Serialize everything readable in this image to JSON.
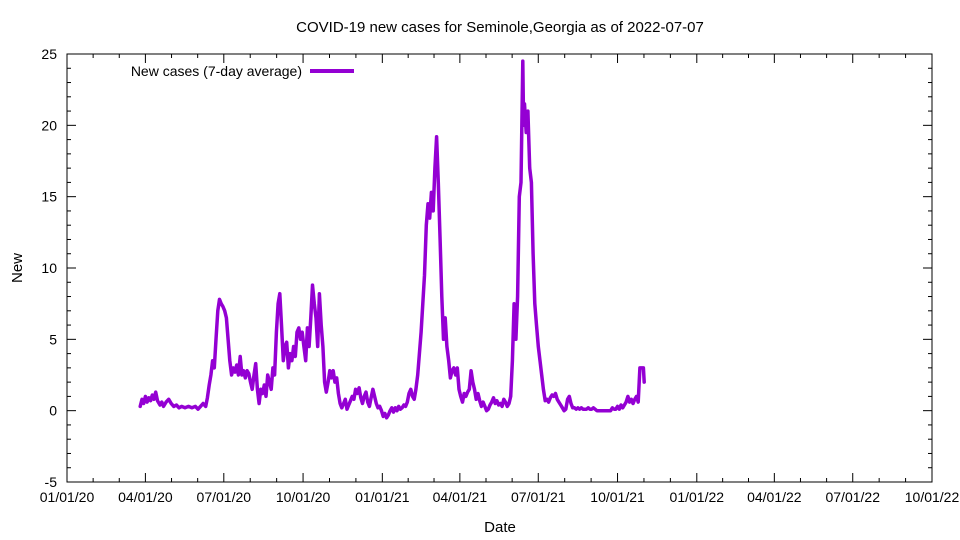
{
  "chart_data": {
    "type": "line",
    "title": "COVID-19 new cases for Seminole,Georgia as of 2022-07-07",
    "xlabel": "Date",
    "ylabel": "New",
    "ylim": [
      -5,
      25
    ],
    "yticks": [
      -5,
      0,
      5,
      10,
      15,
      20,
      25
    ],
    "xlim_days": [
      0,
      1004
    ],
    "xticks": [
      {
        "day": 0,
        "label": "01/01/20"
      },
      {
        "day": 91,
        "label": "04/01/20"
      },
      {
        "day": 182,
        "label": "07/01/20"
      },
      {
        "day": 274,
        "label": "10/01/20"
      },
      {
        "day": 366,
        "label": "01/01/21"
      },
      {
        "day": 456,
        "label": "04/01/21"
      },
      {
        "day": 547,
        "label": "07/01/21"
      },
      {
        "day": 639,
        "label": "10/01/21"
      },
      {
        "day": 731,
        "label": "01/01/22"
      },
      {
        "day": 821,
        "label": "04/01/22"
      },
      {
        "day": 912,
        "label": "07/01/22"
      },
      {
        "day": 1004,
        "label": "10/01/22"
      }
    ],
    "legend_position": "top-left",
    "series": [
      {
        "name": "New cases (7-day average)",
        "color": "#9400d3",
        "points": [
          [
            85,
            0.3
          ],
          [
            87,
            0.8
          ],
          [
            89,
            0.5
          ],
          [
            91,
            1.0
          ],
          [
            93,
            0.6
          ],
          [
            95,
            0.9
          ],
          [
            97,
            0.7
          ],
          [
            99,
            1.1
          ],
          [
            101,
            0.8
          ],
          [
            103,
            1.3
          ],
          [
            105,
            0.7
          ],
          [
            108,
            0.4
          ],
          [
            110,
            0.6
          ],
          [
            112,
            0.3
          ],
          [
            115,
            0.6
          ],
          [
            118,
            0.8
          ],
          [
            121,
            0.5
          ],
          [
            124,
            0.3
          ],
          [
            127,
            0.4
          ],
          [
            130,
            0.2
          ],
          [
            133,
            0.3
          ],
          [
            137,
            0.2
          ],
          [
            141,
            0.3
          ],
          [
            145,
            0.2
          ],
          [
            149,
            0.3
          ],
          [
            152,
            0.1
          ],
          [
            155,
            0.3
          ],
          [
            158,
            0.5
          ],
          [
            161,
            0.3
          ],
          [
            163,
            0.9
          ],
          [
            165,
            1.8
          ],
          [
            167,
            2.5
          ],
          [
            169,
            3.5
          ],
          [
            171,
            3.0
          ],
          [
            173,
            5.0
          ],
          [
            175,
            7.0
          ],
          [
            177,
            7.8
          ],
          [
            179,
            7.5
          ],
          [
            181,
            7.3
          ],
          [
            183,
            7.0
          ],
          [
            185,
            6.5
          ],
          [
            187,
            5.0
          ],
          [
            189,
            3.5
          ],
          [
            191,
            2.5
          ],
          [
            193,
            3.0
          ],
          [
            195,
            2.7
          ],
          [
            197,
            3.2
          ],
          [
            199,
            2.5
          ],
          [
            201,
            3.8
          ],
          [
            203,
            2.5
          ],
          [
            205,
            2.8
          ],
          [
            207,
            2.3
          ],
          [
            209,
            2.8
          ],
          [
            211,
            2.6
          ],
          [
            213,
            2.0
          ],
          [
            215,
            1.5
          ],
          [
            217,
            2.5
          ],
          [
            219,
            3.3
          ],
          [
            221,
            1.5
          ],
          [
            223,
            0.5
          ],
          [
            225,
            1.5
          ],
          [
            227,
            1.2
          ],
          [
            229,
            1.8
          ],
          [
            231,
            1.0
          ],
          [
            233,
            2.5
          ],
          [
            235,
            2.0
          ],
          [
            237,
            1.5
          ],
          [
            239,
            3.0
          ],
          [
            241,
            2.5
          ],
          [
            243,
            5.5
          ],
          [
            245,
            7.5
          ],
          [
            247,
            8.2
          ],
          [
            249,
            6.0
          ],
          [
            251,
            3.5
          ],
          [
            253,
            4.5
          ],
          [
            255,
            4.8
          ],
          [
            257,
            3.0
          ],
          [
            259,
            4.0
          ],
          [
            261,
            3.5
          ],
          [
            263,
            4.5
          ],
          [
            265,
            3.8
          ],
          [
            267,
            5.5
          ],
          [
            269,
            5.8
          ],
          [
            271,
            5.0
          ],
          [
            273,
            5.5
          ],
          [
            275,
            4.5
          ],
          [
            277,
            3.5
          ],
          [
            279,
            5.8
          ],
          [
            281,
            4.5
          ],
          [
            283,
            6.5
          ],
          [
            285,
            8.8
          ],
          [
            287,
            7.5
          ],
          [
            289,
            6.5
          ],
          [
            291,
            4.5
          ],
          [
            293,
            8.2
          ],
          [
            295,
            6.0
          ],
          [
            297,
            4.5
          ],
          [
            299,
            2.0
          ],
          [
            301,
            1.3
          ],
          [
            303,
            2.0
          ],
          [
            305,
            2.8
          ],
          [
            307,
            2.3
          ],
          [
            309,
            2.8
          ],
          [
            311,
            2.0
          ],
          [
            313,
            2.3
          ],
          [
            315,
            1.2
          ],
          [
            317,
            0.5
          ],
          [
            319,
            0.2
          ],
          [
            321,
            0.5
          ],
          [
            323,
            0.8
          ],
          [
            325,
            0.1
          ],
          [
            327,
            0.4
          ],
          [
            329,
            0.7
          ],
          [
            331,
            1.0
          ],
          [
            333,
            0.8
          ],
          [
            335,
            1.5
          ],
          [
            337,
            1.2
          ],
          [
            339,
            1.6
          ],
          [
            341,
            0.9
          ],
          [
            343,
            0.5
          ],
          [
            345,
            1.0
          ],
          [
            347,
            1.3
          ],
          [
            349,
            0.6
          ],
          [
            351,
            0.3
          ],
          [
            353,
            0.9
          ],
          [
            355,
            1.5
          ],
          [
            357,
            1.0
          ],
          [
            359,
            0.5
          ],
          [
            361,
            0.2
          ],
          [
            363,
            0.3
          ],
          [
            365,
            0.0
          ],
          [
            367,
            -0.4
          ],
          [
            369,
            -0.2
          ],
          [
            371,
            -0.5
          ],
          [
            373,
            -0.3
          ],
          [
            375,
            0.0
          ],
          [
            377,
            0.2
          ],
          [
            379,
            -0.1
          ],
          [
            381,
            0.2
          ],
          [
            383,
            0.0
          ],
          [
            385,
            0.3
          ],
          [
            387,
            0.1
          ],
          [
            389,
            0.2
          ],
          [
            391,
            0.4
          ],
          [
            393,
            0.3
          ],
          [
            395,
            0.6
          ],
          [
            397,
            1.2
          ],
          [
            399,
            1.5
          ],
          [
            401,
            1.0
          ],
          [
            403,
            0.8
          ],
          [
            405,
            1.5
          ],
          [
            407,
            2.5
          ],
          [
            409,
            4.0
          ],
          [
            411,
            5.5
          ],
          [
            413,
            7.5
          ],
          [
            415,
            9.5
          ],
          [
            417,
            13.0
          ],
          [
            419,
            14.5
          ],
          [
            421,
            13.5
          ],
          [
            423,
            15.3
          ],
          [
            425,
            14.0
          ],
          [
            427,
            17.0
          ],
          [
            429,
            19.2
          ],
          [
            431,
            16.0
          ],
          [
            433,
            12.0
          ],
          [
            435,
            8.0
          ],
          [
            437,
            5.0
          ],
          [
            439,
            6.5
          ],
          [
            441,
            4.5
          ],
          [
            443,
            3.5
          ],
          [
            445,
            2.3
          ],
          [
            447,
            2.8
          ],
          [
            449,
            3.0
          ],
          [
            451,
            2.5
          ],
          [
            453,
            3.0
          ],
          [
            455,
            1.5
          ],
          [
            457,
            1.0
          ],
          [
            459,
            0.6
          ],
          [
            461,
            1.2
          ],
          [
            463,
            1.0
          ],
          [
            465,
            1.3
          ],
          [
            467,
            1.5
          ],
          [
            469,
            2.8
          ],
          [
            471,
            2.0
          ],
          [
            473,
            1.5
          ],
          [
            475,
            0.8
          ],
          [
            477,
            1.2
          ],
          [
            479,
            0.7
          ],
          [
            481,
            0.3
          ],
          [
            483,
            0.6
          ],
          [
            485,
            0.3
          ],
          [
            487,
            0.0
          ],
          [
            489,
            0.1
          ],
          [
            491,
            0.4
          ],
          [
            493,
            0.6
          ],
          [
            495,
            0.9
          ],
          [
            497,
            0.5
          ],
          [
            499,
            0.7
          ],
          [
            501,
            0.4
          ],
          [
            503,
            0.5
          ],
          [
            505,
            0.3
          ],
          [
            507,
            0.8
          ],
          [
            509,
            0.6
          ],
          [
            511,
            0.3
          ],
          [
            513,
            0.5
          ],
          [
            515,
            1.0
          ],
          [
            517,
            3.5
          ],
          [
            519,
            7.5
          ],
          [
            521,
            5.0
          ],
          [
            523,
            8.0
          ],
          [
            525,
            15.0
          ],
          [
            527,
            16.0
          ],
          [
            529,
            24.5
          ],
          [
            530,
            20.0
          ],
          [
            531,
            21.5
          ],
          [
            533,
            19.5
          ],
          [
            535,
            21.0
          ],
          [
            537,
            17.0
          ],
          [
            539,
            16.0
          ],
          [
            541,
            11.0
          ],
          [
            543,
            7.5
          ],
          [
            545,
            6.0
          ],
          [
            547,
            4.5
          ],
          [
            549,
            3.5
          ],
          [
            551,
            2.5
          ],
          [
            553,
            1.5
          ],
          [
            555,
            0.7
          ],
          [
            557,
            0.8
          ],
          [
            559,
            0.6
          ],
          [
            561,
            0.9
          ],
          [
            563,
            1.1
          ],
          [
            565,
            1.0
          ],
          [
            567,
            1.2
          ],
          [
            569,
            0.8
          ],
          [
            571,
            0.6
          ],
          [
            573,
            0.4
          ],
          [
            575,
            0.2
          ],
          [
            577,
            0.0
          ],
          [
            579,
            0.1
          ],
          [
            581,
            0.8
          ],
          [
            583,
            1.0
          ],
          [
            585,
            0.5
          ],
          [
            587,
            0.2
          ],
          [
            589,
            0.2
          ],
          [
            591,
            0.1
          ],
          [
            593,
            0.2
          ],
          [
            595,
            0.1
          ],
          [
            597,
            0.2
          ],
          [
            599,
            0.1
          ],
          [
            601,
            0.1
          ],
          [
            603,
            0.1
          ],
          [
            605,
            0.2
          ],
          [
            607,
            0.1
          ],
          [
            609,
            0.1
          ],
          [
            611,
            0.2
          ],
          [
            613,
            0.1
          ],
          [
            615,
            0.0
          ],
          [
            617,
            0.0
          ],
          [
            619,
            0.0
          ],
          [
            621,
            0.0
          ],
          [
            623,
            0.0
          ],
          [
            625,
            0.0
          ],
          [
            627,
            0.0
          ],
          [
            629,
            0.0
          ],
          [
            631,
            0.0
          ],
          [
            633,
            0.2
          ],
          [
            635,
            0.1
          ],
          [
            637,
            0.1
          ],
          [
            639,
            0.3
          ],
          [
            641,
            0.1
          ],
          [
            643,
            0.4
          ],
          [
            645,
            0.2
          ],
          [
            647,
            0.4
          ],
          [
            649,
            0.6
          ],
          [
            651,
            1.0
          ],
          [
            653,
            0.6
          ],
          [
            655,
            0.8
          ],
          [
            657,
            0.5
          ],
          [
            659,
            0.8
          ],
          [
            661,
            1.0
          ],
          [
            663,
            0.6
          ],
          [
            665,
            3.0
          ],
          [
            667,
            3.0
          ],
          [
            669,
            3.0
          ],
          [
            670,
            2.0
          ]
        ]
      }
    ]
  }
}
